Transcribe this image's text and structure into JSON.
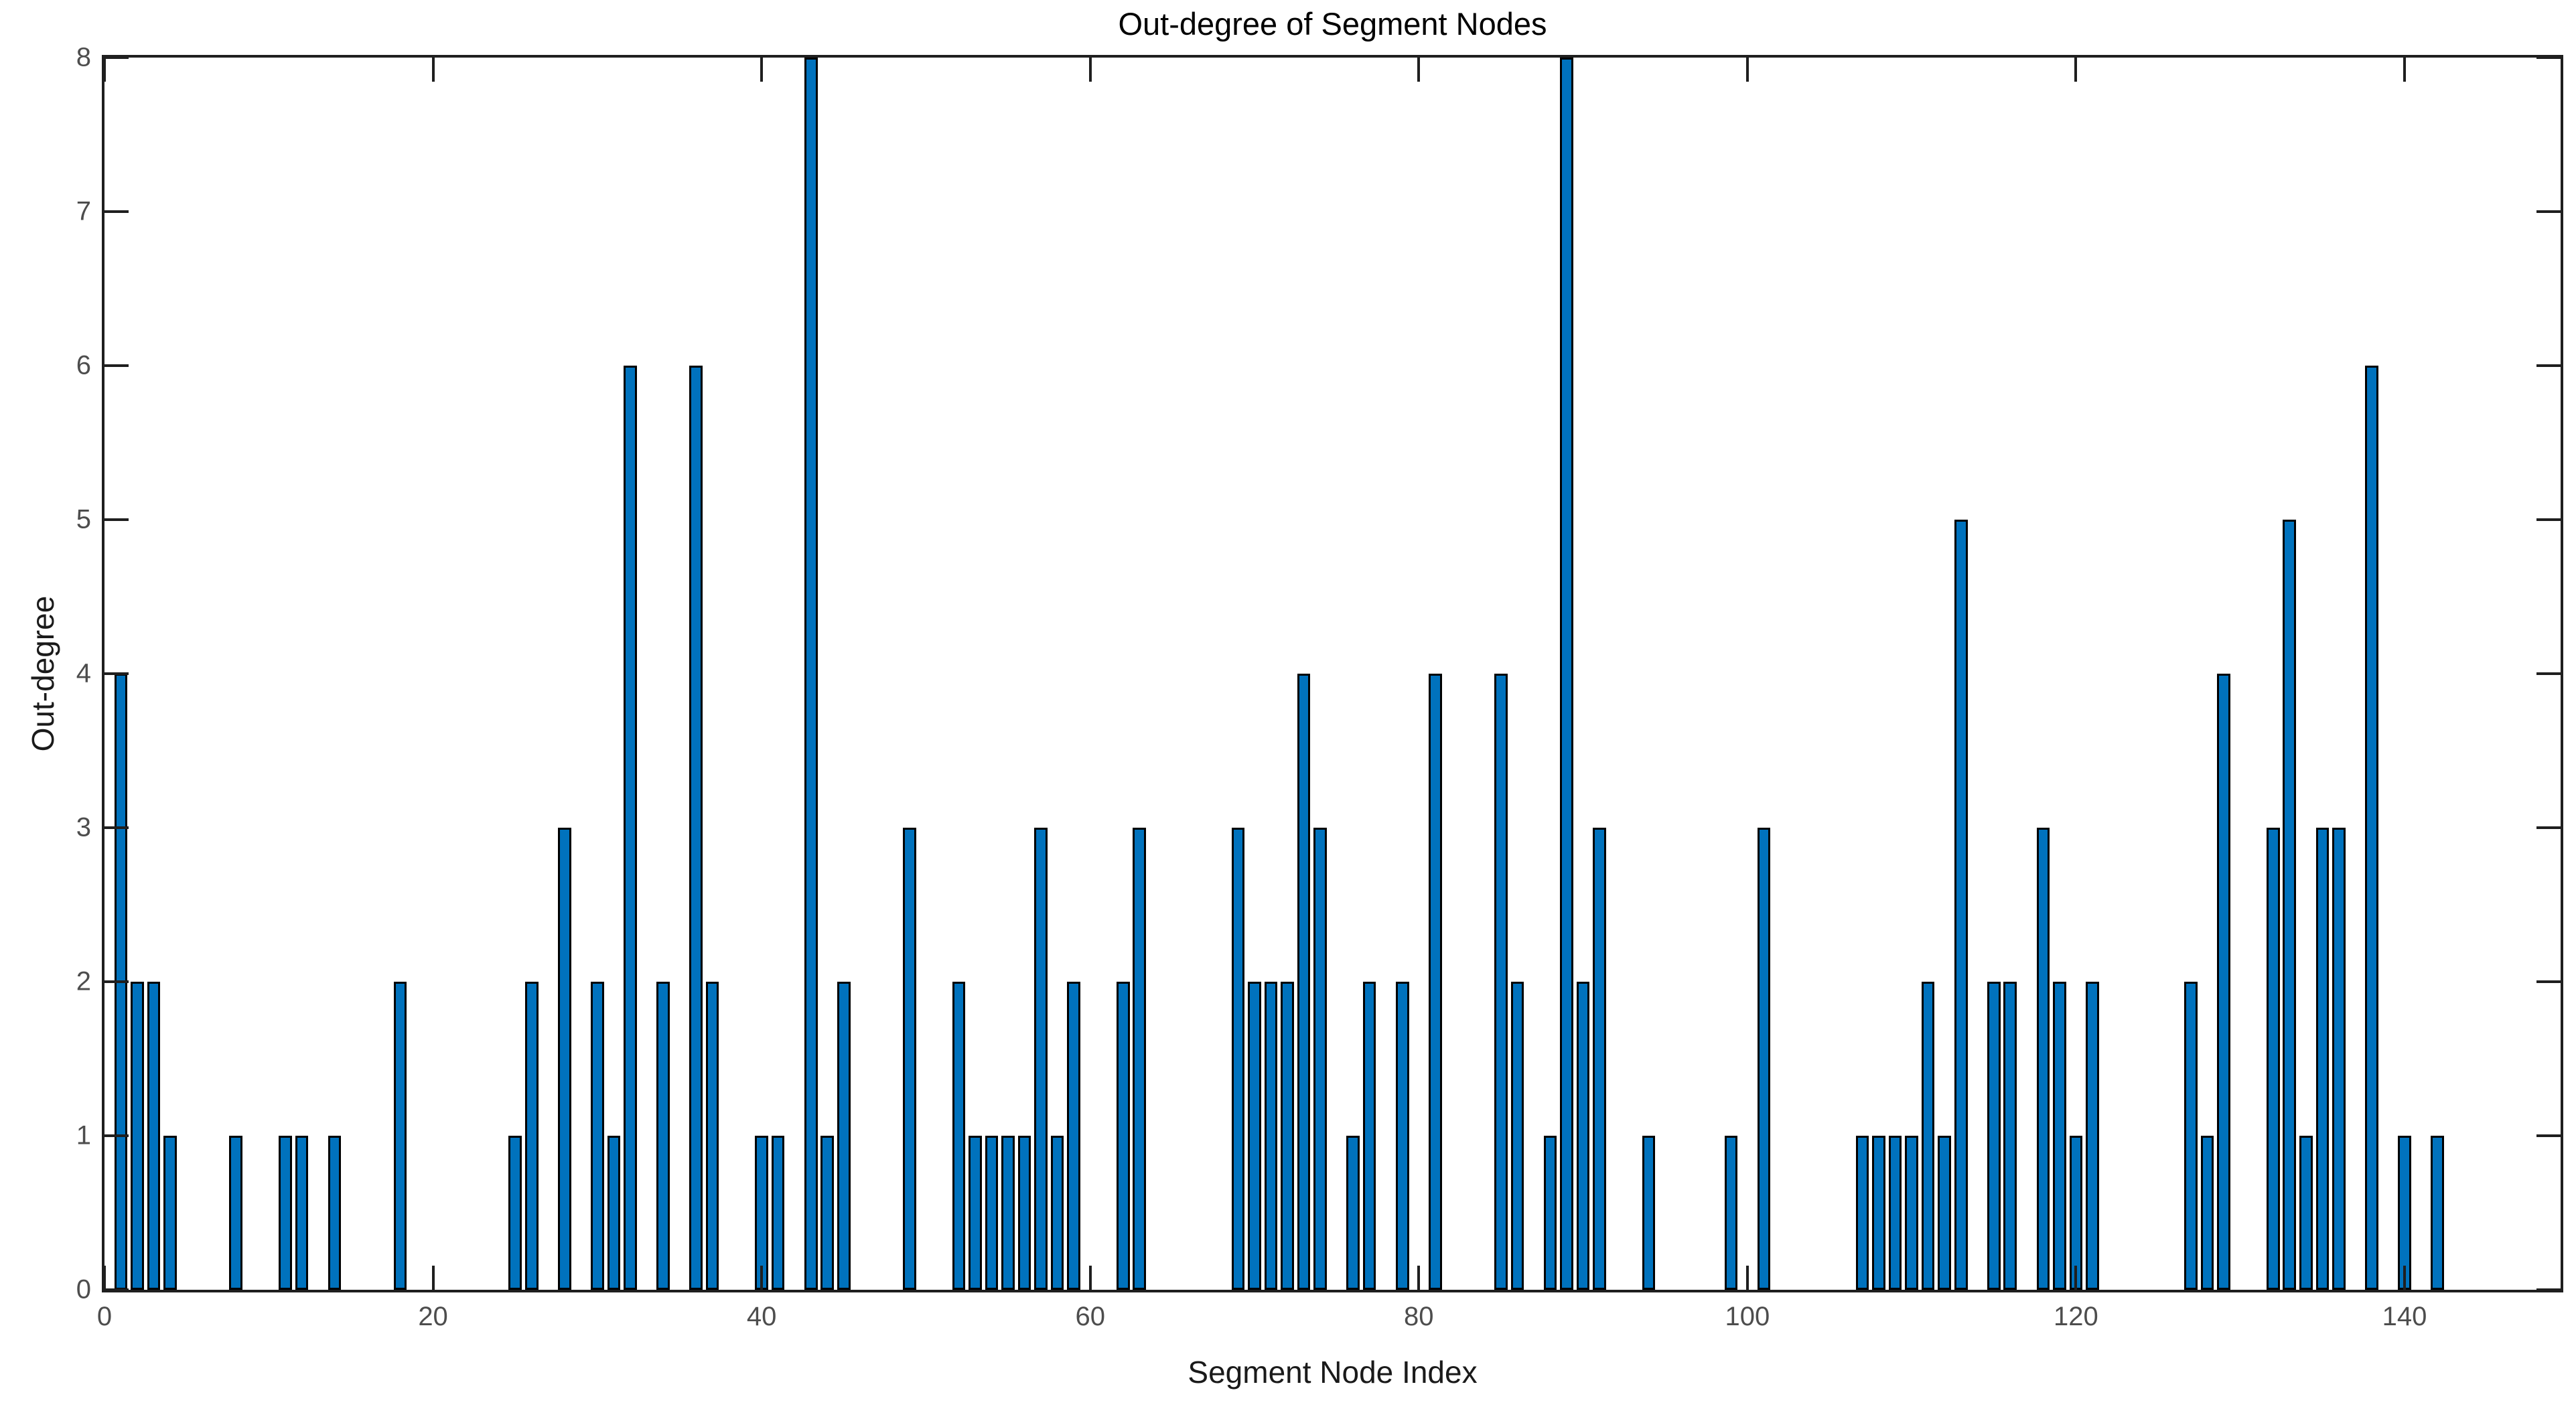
{
  "figure": {
    "title": "Out-degree of Segment Nodes",
    "xlabel": "Segment Node Index",
    "ylabel": "Out-degree"
  },
  "chart_data": {
    "type": "bar",
    "title": "Out-degree of Segment Nodes",
    "xlabel": "Segment Node Index",
    "ylabel": "Out-degree",
    "xlim": [
      0,
      149.5
    ],
    "ylim": [
      0,
      8
    ],
    "x_ticks": [
      0,
      20,
      40,
      60,
      80,
      100,
      120,
      140
    ],
    "y_ticks": [
      0,
      1,
      2,
      3,
      4,
      5,
      6,
      7,
      8
    ],
    "grid": false,
    "legend": null,
    "bar_width": 0.8,
    "bar_color": "#0072BD",
    "bar_edge_color": "#000000",
    "axis_color": "#1f1f1f",
    "tick_label_color": "#4d4d4d",
    "points": [
      [
        1,
        4
      ],
      [
        2,
        2
      ],
      [
        3,
        2
      ],
      [
        4,
        1
      ],
      [
        8,
        1
      ],
      [
        11,
        1
      ],
      [
        12,
        1
      ],
      [
        14,
        1
      ],
      [
        18,
        2
      ],
      [
        25,
        1
      ],
      [
        26,
        2
      ],
      [
        28,
        3
      ],
      [
        30,
        2
      ],
      [
        31,
        1
      ],
      [
        32,
        6
      ],
      [
        34,
        2
      ],
      [
        36,
        6
      ],
      [
        37,
        2
      ],
      [
        40,
        1
      ],
      [
        41,
        1
      ],
      [
        43,
        8
      ],
      [
        44,
        1
      ],
      [
        45,
        2
      ],
      [
        49,
        3
      ],
      [
        52,
        2
      ],
      [
        53,
        1
      ],
      [
        54,
        1
      ],
      [
        55,
        1
      ],
      [
        56,
        1
      ],
      [
        57,
        3
      ],
      [
        58,
        1
      ],
      [
        59,
        2
      ],
      [
        62,
        2
      ],
      [
        63,
        3
      ],
      [
        69,
        3
      ],
      [
        70,
        2
      ],
      [
        71,
        2
      ],
      [
        72,
        2
      ],
      [
        73,
        4
      ],
      [
        74,
        3
      ],
      [
        76,
        1
      ],
      [
        77,
        2
      ],
      [
        79,
        2
      ],
      [
        81,
        4
      ],
      [
        85,
        4
      ],
      [
        86,
        2
      ],
      [
        88,
        1
      ],
      [
        89,
        8
      ],
      [
        90,
        2
      ],
      [
        91,
        3
      ],
      [
        94,
        1
      ],
      [
        99,
        1
      ],
      [
        101,
        3
      ],
      [
        107,
        1
      ],
      [
        108,
        1
      ],
      [
        109,
        1
      ],
      [
        110,
        1
      ],
      [
        111,
        2
      ],
      [
        112,
        1
      ],
      [
        113,
        5
      ],
      [
        115,
        2
      ],
      [
        116,
        2
      ],
      [
        118,
        3
      ],
      [
        119,
        2
      ],
      [
        120,
        1
      ],
      [
        121,
        2
      ],
      [
        127,
        2
      ],
      [
        128,
        1
      ],
      [
        129,
        4
      ],
      [
        132,
        3
      ],
      [
        133,
        5
      ],
      [
        134,
        1
      ],
      [
        135,
        3
      ],
      [
        136,
        3
      ],
      [
        138,
        6
      ],
      [
        140,
        1
      ],
      [
        142,
        1
      ]
    ]
  }
}
